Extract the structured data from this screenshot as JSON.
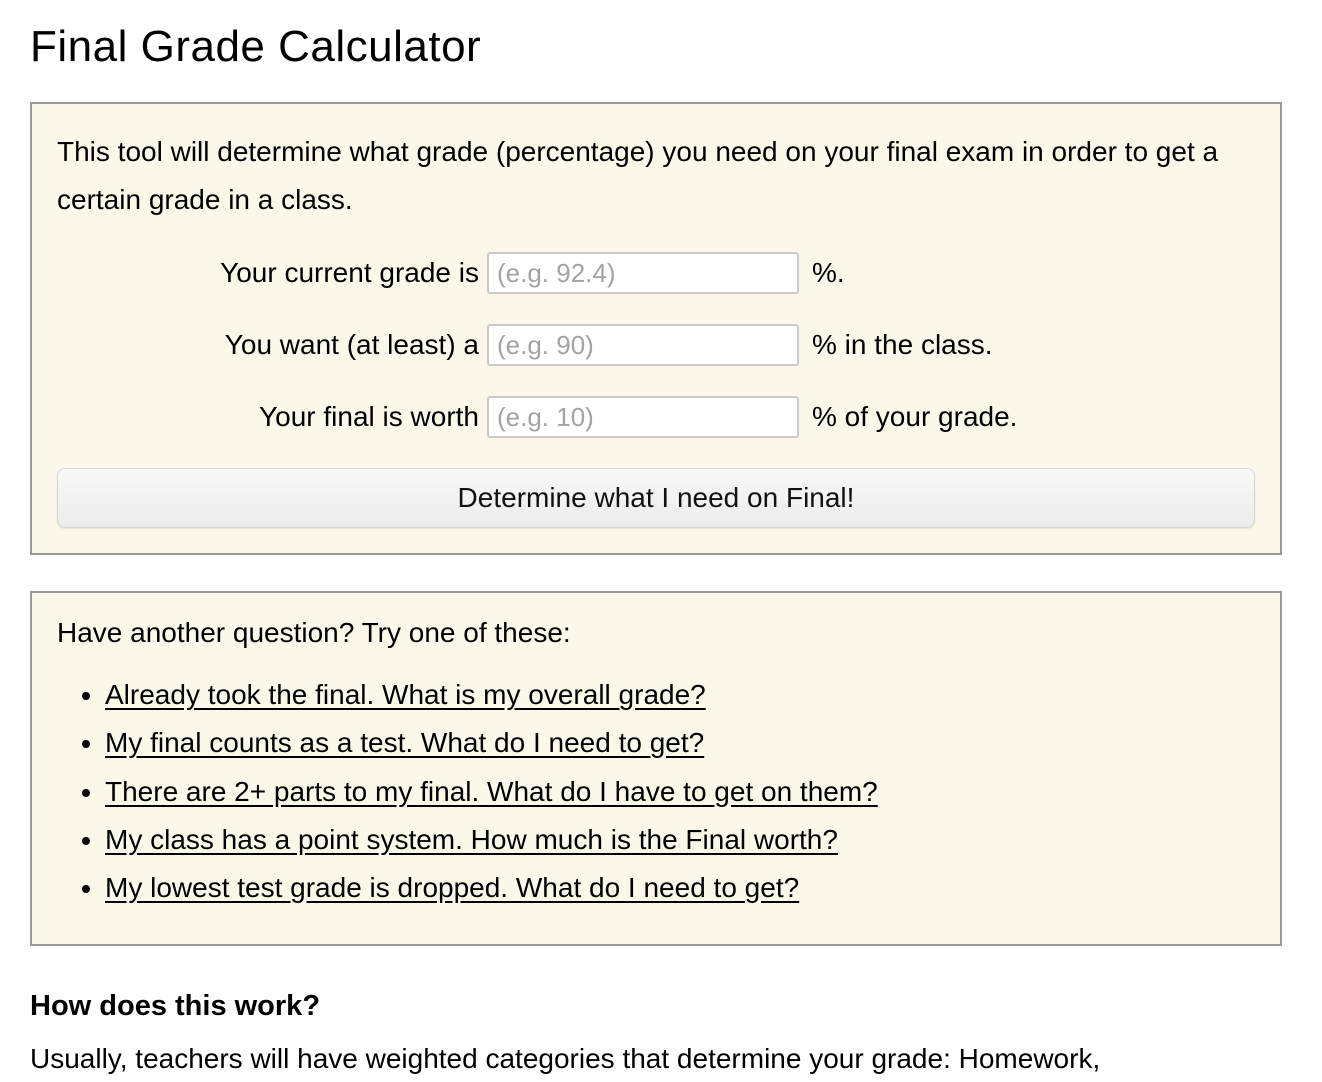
{
  "page": {
    "title": "Final Grade Calculator"
  },
  "calculator": {
    "description": "This tool will determine what grade (percentage) you need on your final exam in order to get a certain grade in a class.",
    "rows": [
      {
        "label": "Your current grade is",
        "placeholder": "(e.g. 92.4)",
        "value": "",
        "suffix": "%."
      },
      {
        "label": "You want (at least) a",
        "placeholder": "(e.g. 90)",
        "value": "",
        "suffix": "% in the class."
      },
      {
        "label": "Your final is worth",
        "placeholder": "(e.g. 10)",
        "value": "",
        "suffix": "% of your grade."
      }
    ],
    "submit_label": "Determine what I need on Final!"
  },
  "questions": {
    "heading": "Have another question? Try one of these:",
    "links": [
      {
        "label": "Already took the final. What is my overall grade?"
      },
      {
        "label": "My final counts as a test. What do I need to get?"
      },
      {
        "label": "There are 2+ parts to my final. What do I have to get on them?"
      },
      {
        "label": "My class has a point system. How much is the Final worth?"
      },
      {
        "label": "My lowest test grade is dropped. What do I need to get?"
      }
    ]
  },
  "how_it_works": {
    "heading": "How does this work?",
    "paragraph": "Usually, teachers will have weighted categories that determine your grade: Homework,"
  },
  "colors": {
    "panel_background": "#fbf7e9",
    "panel_border": "#999999",
    "input_border": "#c9c9c9",
    "placeholder_text": "#a3a3a3",
    "button_background": "#efefef",
    "link_text": "#000000"
  }
}
